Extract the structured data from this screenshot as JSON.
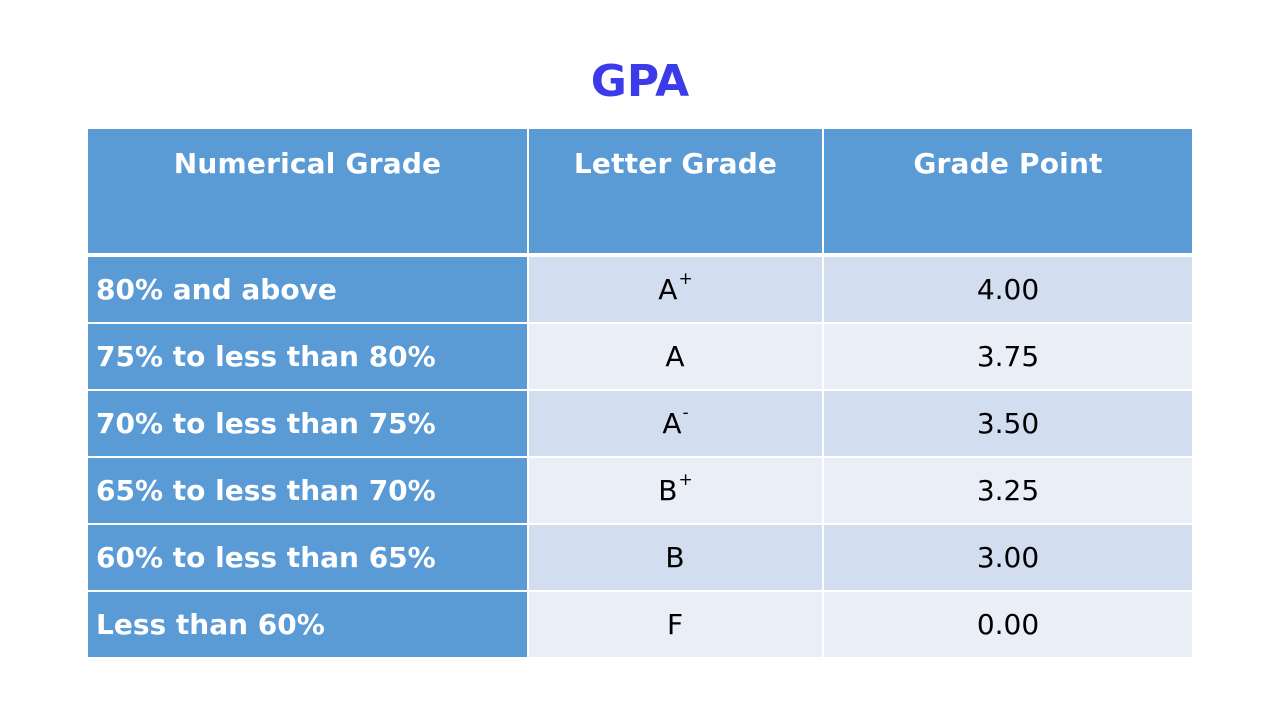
{
  "title": "GPA",
  "headers": {
    "numerical": "Numerical Grade",
    "letter": "Letter Grade",
    "point": "Grade Point"
  },
  "rows": [
    {
      "range": "80% and above",
      "letter": "A",
      "modifier": "+",
      "point": "4.00"
    },
    {
      "range": "75% to less than 80%",
      "letter": "A",
      "modifier": "",
      "point": "3.75"
    },
    {
      "range": "70% to less than 75%",
      "letter": "A",
      "modifier": "-",
      "point": "3.50"
    },
    {
      "range": "65% to less than 70%",
      "letter": "B",
      "modifier": "+",
      "point": "3.25"
    },
    {
      "range": "60% to less than 65%",
      "letter": "B",
      "modifier": "",
      "point": "3.00"
    },
    {
      "range": "Less than 60%",
      "letter": "F",
      "modifier": "",
      "point": "0.00"
    }
  ],
  "colors": {
    "title": "#3b3bea",
    "header_bg": "#5b9bd5",
    "band_dark": "#d2deef",
    "band_light": "#eaeff7"
  }
}
